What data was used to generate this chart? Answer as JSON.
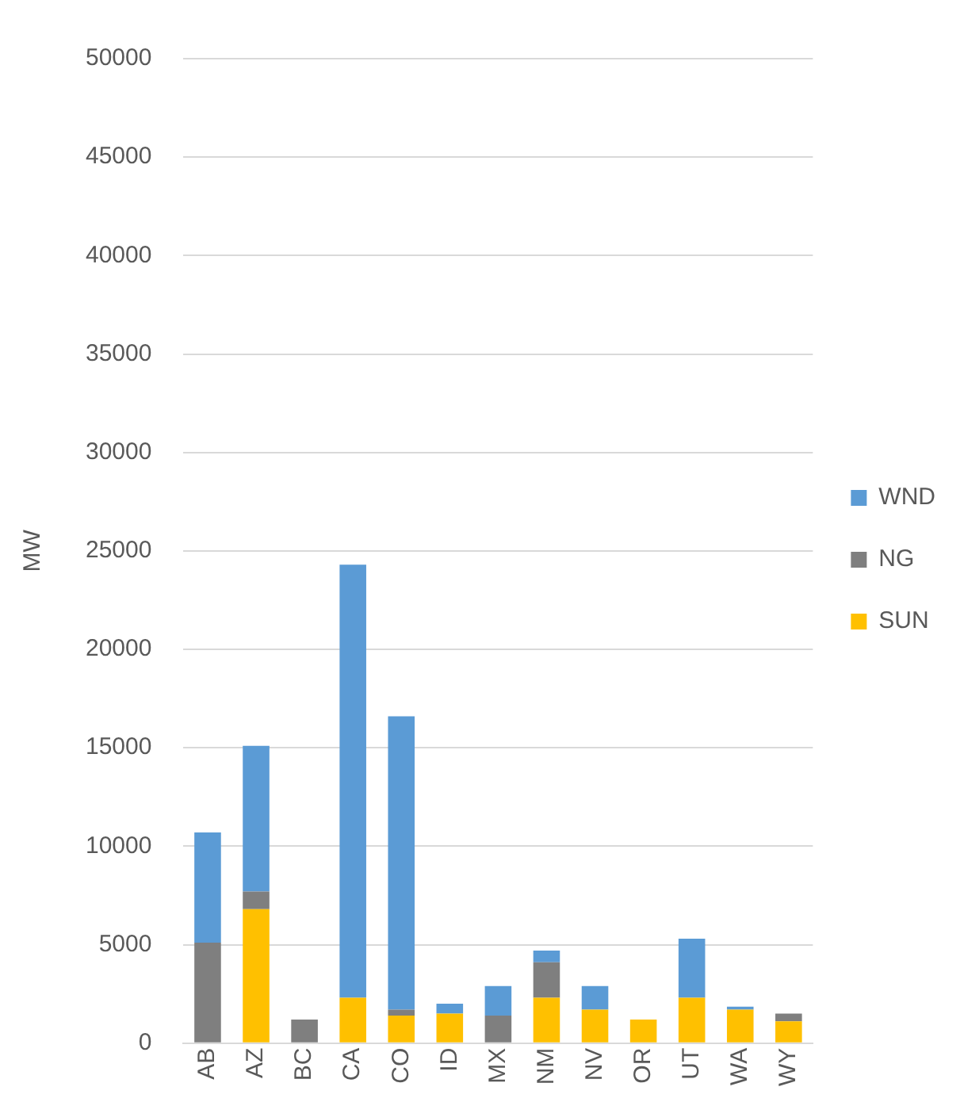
{
  "chart_data": {
    "type": "bar",
    "stacked": true,
    "ylabel": "MW",
    "categories": [
      "AB",
      "AZ",
      "BC",
      "CA",
      "CO",
      "ID",
      "MX",
      "NM",
      "NV",
      "OR",
      "UT",
      "WA",
      "WY"
    ],
    "series": [
      {
        "name": "SUN",
        "color": "#ffc000",
        "values": [
          0,
          6800,
          0,
          2300,
          1400,
          1500,
          0,
          2300,
          1700,
          1200,
          2300,
          1700,
          1100
        ]
      },
      {
        "name": "NG",
        "color": "#7f7f7f",
        "values": [
          5100,
          900,
          1200,
          0,
          300,
          0,
          1400,
          1800,
          0,
          0,
          0,
          0,
          400
        ]
      },
      {
        "name": "WND",
        "color": "#5b9bd5",
        "values": [
          5600,
          7400,
          0,
          22000,
          14900,
          500,
          1500,
          600,
          1200,
          0,
          3000,
          150,
          0
        ]
      }
    ],
    "ylim": [
      0,
      50000
    ],
    "yticks": [
      0,
      5000,
      10000,
      15000,
      20000,
      25000,
      30000,
      35000,
      40000,
      45000,
      50000
    ],
    "grid": "y",
    "legend": "right"
  }
}
